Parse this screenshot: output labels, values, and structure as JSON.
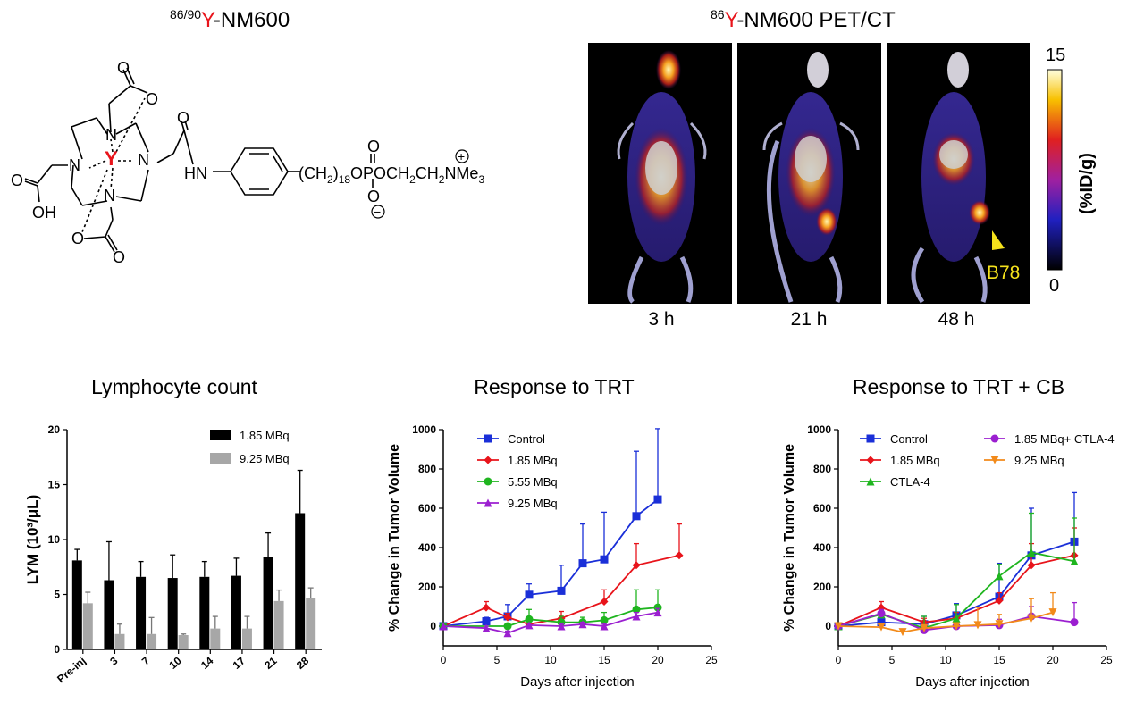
{
  "header": {
    "left_title": {
      "sup": "86/90",
      "element": "Y",
      "rest": "-NM600"
    },
    "right_title": {
      "sup": "86",
      "element": "Y",
      "rest": "-NM600 PET/CT"
    }
  },
  "structure": {
    "metal": "Y",
    "n_labels": [
      "N",
      "N",
      "N",
      "N"
    ],
    "o_labels": [
      "O",
      "O",
      "O",
      "O",
      "O",
      "O"
    ],
    "oh_label": "OH",
    "hn_label": "HN",
    "chain_pre": "(CH",
    "chain_sub1": "2",
    "chain_mid": ")",
    "chain_sub2": "18",
    "chain_tail": "OPOCH",
    "chain_sub3": "2",
    "chain_ch": "CH",
    "chain_sub4": "2",
    "chain_nme": "NMe",
    "chain_sub5": "3",
    "plus": "+",
    "minus": "−"
  },
  "pet": {
    "timepoints": [
      "3 h",
      "21 h",
      "48 h"
    ],
    "tumor_label": "B78",
    "colorbar": {
      "max": "15",
      "min": "0",
      "label": "(%ID/g)"
    },
    "colors": {
      "tumor_arrow": "#f5e21c",
      "tumor_text": "#f5e21c"
    }
  },
  "chart_data": [
    {
      "type": "bar",
      "title": "Lymphocyte count",
      "ylabel": "LYM (10³/μL)",
      "xlabel": "",
      "categories": [
        "Pre-inj",
        "3",
        "7",
        "10",
        "14",
        "17",
        "21",
        "28"
      ],
      "ylim": [
        0,
        20
      ],
      "yticks": [
        0,
        5,
        10,
        15,
        20
      ],
      "legend": "top-right",
      "series": [
        {
          "name": "1.85 MBq",
          "color": "#000000",
          "values": [
            8.1,
            6.3,
            6.6,
            6.5,
            6.6,
            6.7,
            8.4,
            12.4
          ],
          "errors": [
            1.0,
            3.5,
            1.4,
            2.1,
            1.4,
            1.6,
            2.2,
            3.9
          ]
        },
        {
          "name": "9.25 MBq",
          "color": "#a7a7a7",
          "values": [
            4.2,
            1.4,
            1.4,
            1.3,
            1.9,
            1.9,
            4.4,
            4.7
          ],
          "errors": [
            1.0,
            0.9,
            1.5,
            0.1,
            1.1,
            1.1,
            1.0,
            0.9
          ]
        }
      ]
    },
    {
      "type": "line",
      "title": "Response to TRT",
      "xlabel": "Days after injection",
      "ylabel": "% Change in Tumor Volume",
      "xlim": [
        0,
        25
      ],
      "ylim": [
        -100,
        1000
      ],
      "xticks": [
        0,
        5,
        10,
        15,
        20,
        25
      ],
      "yticks": [
        0,
        200,
        400,
        600,
        800,
        1000
      ],
      "legend": "top-left",
      "series": [
        {
          "name": "Control",
          "color": "#1a2fd8",
          "marker": "square",
          "x": [
            0,
            4,
            6,
            8,
            11,
            13,
            15,
            18,
            20
          ],
          "y": [
            0,
            25,
            50,
            160,
            180,
            320,
            340,
            560,
            645
          ],
          "err": [
            0,
            20,
            60,
            55,
            130,
            200,
            240,
            330,
            360
          ]
        },
        {
          "name": "1.85 MBq",
          "color": "#e8141b",
          "marker": "diamond",
          "x": [
            0,
            4,
            6,
            8,
            11,
            15,
            18,
            22
          ],
          "y": [
            0,
            95,
            45,
            10,
            40,
            125,
            310,
            360
          ],
          "err": [
            0,
            30,
            20,
            20,
            35,
            60,
            110,
            160
          ]
        },
        {
          "name": "5.55 MBq",
          "color": "#1fb51f",
          "marker": "circle",
          "x": [
            0,
            6,
            8,
            11,
            13,
            15,
            18,
            20
          ],
          "y": [
            0,
            0,
            35,
            20,
            20,
            30,
            85,
            95
          ],
          "err": [
            0,
            15,
            50,
            30,
            25,
            40,
            100,
            90
          ]
        },
        {
          "name": "9.25 MBq",
          "color": "#9b1fd0",
          "marker": "triangle",
          "x": [
            0,
            4,
            6,
            8,
            11,
            13,
            15,
            18,
            20
          ],
          "y": [
            0,
            -10,
            -35,
            5,
            0,
            10,
            0,
            50,
            70
          ],
          "err": [
            0,
            10,
            10,
            10,
            10,
            10,
            10,
            20,
            20
          ]
        }
      ]
    },
    {
      "type": "line",
      "title": "Response to TRT + CB",
      "xlabel": "Days after injection",
      "ylabel": "% Change in Tumor Volume",
      "xlim": [
        0,
        25
      ],
      "ylim": [
        -100,
        1000
      ],
      "xticks": [
        0,
        5,
        10,
        15,
        20,
        25
      ],
      "yticks": [
        0,
        200,
        400,
        600,
        800,
        1000
      ],
      "legend": "top",
      "series": [
        {
          "name": "Control",
          "color": "#1a2fd8",
          "marker": "square",
          "x": [
            0,
            4,
            8,
            11,
            15,
            18,
            22
          ],
          "y": [
            0,
            20,
            10,
            55,
            150,
            360,
            430
          ],
          "err": [
            0,
            15,
            40,
            60,
            170,
            240,
            250
          ]
        },
        {
          "name": "1.85 MBq",
          "color": "#e8141b",
          "marker": "diamond",
          "x": [
            0,
            4,
            8,
            11,
            15,
            18,
            22
          ],
          "y": [
            0,
            95,
            20,
            40,
            130,
            310,
            360
          ],
          "err": [
            0,
            30,
            20,
            30,
            40,
            110,
            140
          ]
        },
        {
          "name": "CTLA-4",
          "color": "#1fb51f",
          "marker": "triangle",
          "x": [
            0,
            4,
            8,
            11,
            15,
            18,
            22
          ],
          "y": [
            0,
            60,
            -10,
            40,
            255,
            375,
            330
          ],
          "err": [
            0,
            20,
            60,
            70,
            60,
            200,
            220
          ]
        },
        {
          "name": "1.85 MBq+ CTLA-4",
          "color": "#9b1fd0",
          "marker": "circle",
          "x": [
            0,
            4,
            8,
            11,
            15,
            18,
            22
          ],
          "y": [
            0,
            65,
            -20,
            0,
            5,
            50,
            20
          ],
          "err": [
            0,
            20,
            15,
            10,
            30,
            50,
            100
          ]
        },
        {
          "name": "9.25 MBq",
          "color": "#f28a1a",
          "marker": "tri-down",
          "x": [
            0,
            4,
            6,
            8,
            11,
            13,
            15,
            18,
            20
          ],
          "y": [
            0,
            -5,
            -30,
            -10,
            0,
            5,
            10,
            40,
            70
          ],
          "err": [
            0,
            10,
            10,
            10,
            10,
            90,
            50,
            100,
            100
          ]
        }
      ]
    }
  ]
}
